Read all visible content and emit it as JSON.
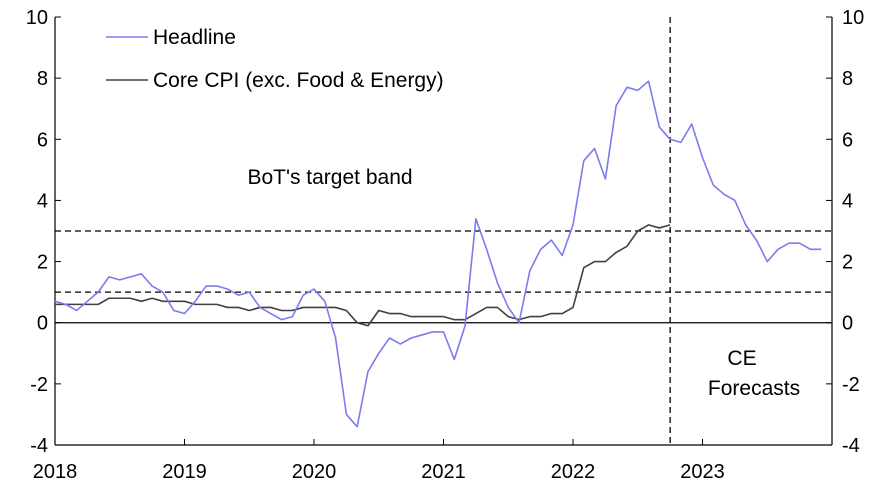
{
  "chart_data": {
    "type": "line",
    "x_range": [
      "2018-01",
      "2023-12"
    ],
    "ylim": [
      -4,
      10
    ],
    "y_ticks": [
      10,
      8,
      6,
      4,
      2,
      0,
      -2,
      -4
    ],
    "x_tick_labels": [
      "2018",
      "2019",
      "2020",
      "2021",
      "2022",
      "2023"
    ],
    "target_band": [
      1,
      3
    ],
    "forecast_start": "2022-10",
    "annotations": {
      "band_label": "BoT's target band",
      "forecast_label_line1": "CE",
      "forecast_label_line2": "Forecasts"
    },
    "colors": {
      "headline": "#7b7bf0",
      "core": "#404040"
    },
    "series": [
      {
        "name": "Headline",
        "key": "headline",
        "start": "2018-01",
        "values": [
          0.7,
          0.6,
          0.4,
          0.7,
          1.0,
          1.5,
          1.4,
          1.5,
          1.6,
          1.2,
          1.0,
          0.4,
          0.3,
          0.7,
          1.2,
          1.2,
          1.1,
          0.9,
          1.0,
          0.5,
          0.3,
          0.1,
          0.2,
          0.9,
          1.1,
          0.7,
          -0.5,
          -3.0,
          -3.4,
          -1.6,
          -1.0,
          -0.5,
          -0.7,
          -0.5,
          -0.4,
          -0.3,
          -0.3,
          -1.2,
          -0.1,
          3.4,
          2.4,
          1.3,
          0.5,
          0.0,
          1.7,
          2.4,
          2.7,
          2.2,
          3.2,
          5.3,
          5.7,
          4.7,
          7.1,
          7.7,
          7.6,
          7.9,
          6.4,
          6.0,
          5.9,
          6.5,
          5.4,
          4.5,
          4.2,
          4.0,
          3.2,
          2.7,
          2.0,
          2.4,
          2.6,
          2.6,
          2.4,
          2.4
        ]
      },
      {
        "name": "Core CPI (exc. Food & Energy)",
        "key": "core",
        "start": "2018-01",
        "values": [
          0.6,
          0.6,
          0.6,
          0.6,
          0.6,
          0.8,
          0.8,
          0.8,
          0.7,
          0.8,
          0.7,
          0.7,
          0.7,
          0.6,
          0.6,
          0.6,
          0.5,
          0.5,
          0.4,
          0.5,
          0.5,
          0.4,
          0.4,
          0.5,
          0.5,
          0.5,
          0.5,
          0.4,
          0.0,
          -0.1,
          0.4,
          0.3,
          0.3,
          0.2,
          0.2,
          0.2,
          0.2,
          0.1,
          0.1,
          0.3,
          0.5,
          0.5,
          0.2,
          0.1,
          0.2,
          0.2,
          0.3,
          0.3,
          0.5,
          1.8,
          2.0,
          2.0,
          2.3,
          2.5,
          3.0,
          3.2,
          3.1,
          3.2
        ]
      }
    ]
  }
}
